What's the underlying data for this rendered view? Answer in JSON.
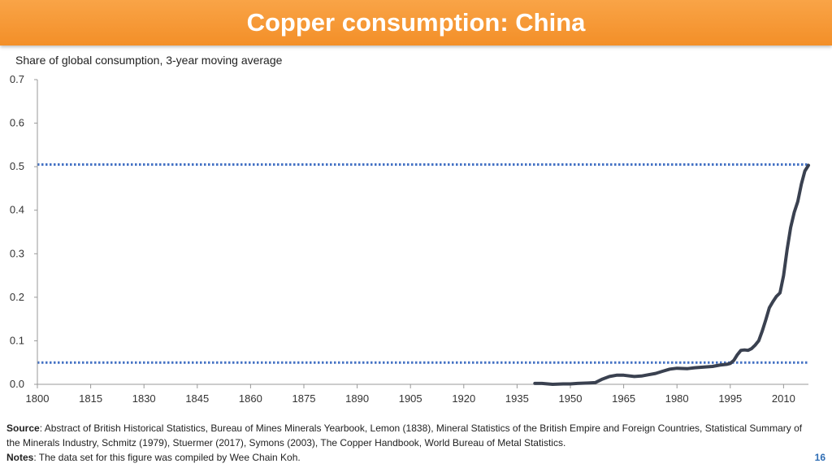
{
  "header": {
    "title": "Copper consumption: China"
  },
  "footer": {
    "source_label": "Source",
    "source_text": ": Abstract of British Historical Statistics, Bureau of Mines Minerals Yearbook, Lemon (1838), Mineral Statistics of the British Empire and Foreign Countries, Statistical Summary of the Minerals Industry, Schmitz (1979), Stuermer (2017), Symons (2003), The Copper Handbook, World Bureau of Metal Statistics.",
    "notes_label": "Notes",
    "notes_text": ": The data set for this figure was compiled by Wee Chain Koh.",
    "page_number": "16"
  },
  "chart_data": {
    "type": "line",
    "title": "",
    "subtitle": "Share of global consumption, 3-year moving average",
    "xlabel": "",
    "ylabel": "",
    "xlim": [
      1800,
      2017
    ],
    "ylim": [
      0,
      0.7
    ],
    "x_ticks": [
      "1800",
      "1815",
      "1830",
      "1845",
      "1860",
      "1875",
      "1890",
      "1905",
      "1920",
      "1935",
      "1950",
      "1965",
      "1980",
      "1995",
      "2010"
    ],
    "y_ticks": [
      "0.0",
      "0.1",
      "0.2",
      "0.3",
      "0.4",
      "0.5",
      "0.6",
      "0.7"
    ],
    "grid": false,
    "legend": "none",
    "line_color": "#3a4150",
    "reference_lines": [
      {
        "y": 0.505,
        "style": "dotted",
        "color": "#4472c4"
      },
      {
        "y": 0.05,
        "style": "dotted",
        "color": "#4472c4"
      }
    ],
    "series": [
      {
        "x": [
          1940,
          1942,
          1945,
          1948,
          1950,
          1952,
          1955,
          1957,
          1959,
          1961,
          1963,
          1965,
          1968,
          1970,
          1972,
          1974,
          1976,
          1978,
          1980,
          1983,
          1985,
          1988,
          1990,
          1992,
          1993,
          1994,
          1995,
          1996,
          1997,
          1998,
          1999,
          2000,
          2001,
          2002,
          2003,
          2004,
          2005,
          2006,
          2007,
          2008,
          2009,
          2010,
          2011,
          2012,
          2013,
          2014,
          2015,
          2016,
          2017
        ],
        "y": [
          0.002,
          0.002,
          0.0,
          0.001,
          0.001,
          0.002,
          0.003,
          0.004,
          0.012,
          0.018,
          0.021,
          0.021,
          0.018,
          0.019,
          0.022,
          0.025,
          0.03,
          0.035,
          0.037,
          0.036,
          0.038,
          0.04,
          0.041,
          0.044,
          0.045,
          0.046,
          0.048,
          0.055,
          0.068,
          0.078,
          0.079,
          0.078,
          0.082,
          0.09,
          0.1,
          0.122,
          0.148,
          0.176,
          0.19,
          0.202,
          0.21,
          0.25,
          0.31,
          0.36,
          0.395,
          0.42,
          0.46,
          0.49,
          0.503
        ]
      }
    ]
  }
}
